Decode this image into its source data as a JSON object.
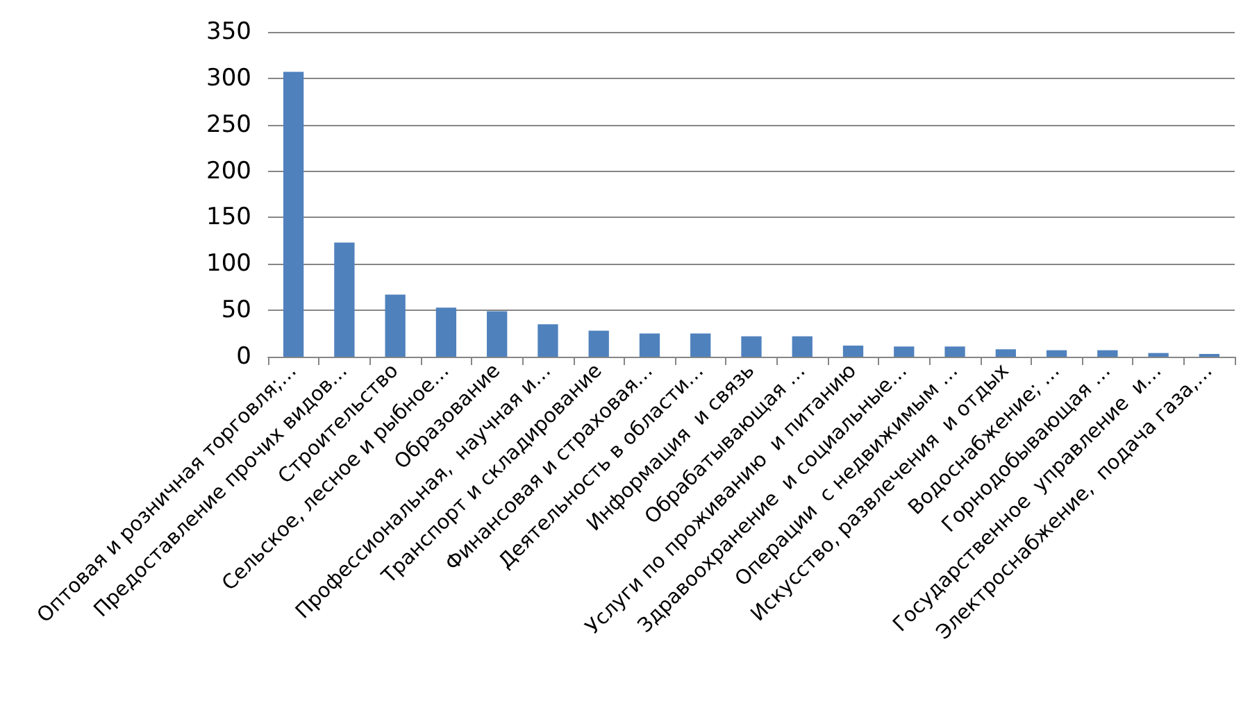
{
  "chart_data": {
    "type": "bar",
    "categories": [
      "Оптовая и розничная торговля;…",
      "Предоставление прочих видов…",
      "Строительство",
      "Сельское, лесное и рыбное…",
      "Образование",
      "Профессиональная,  научная и…",
      "Транспорт и складирование",
      "Финансовая и страховая…",
      "Деятельность в области…",
      "Информация  и связь",
      "Обрабатывающая …",
      "Услуги по проживанию  и питанию",
      "Здравоохранение  и социальные…",
      "Операции  с недвижимым …",
      "Искусство, развлечения  и отдых",
      "Водоснабжение; …",
      "Горнодобывающая …",
      "Государственное  управление  и…",
      "Электроснабжение,  подача газа,…"
    ],
    "values": [
      307,
      123,
      67,
      53,
      49,
      35,
      28,
      25,
      25,
      22,
      22,
      12,
      11,
      11,
      8,
      7,
      7,
      4,
      3
    ],
    "color": "#4f81bd",
    "ylim": [
      0,
      350
    ],
    "yticks": [
      0,
      50,
      100,
      150,
      200,
      250,
      300,
      350
    ],
    "grid": "y"
  }
}
